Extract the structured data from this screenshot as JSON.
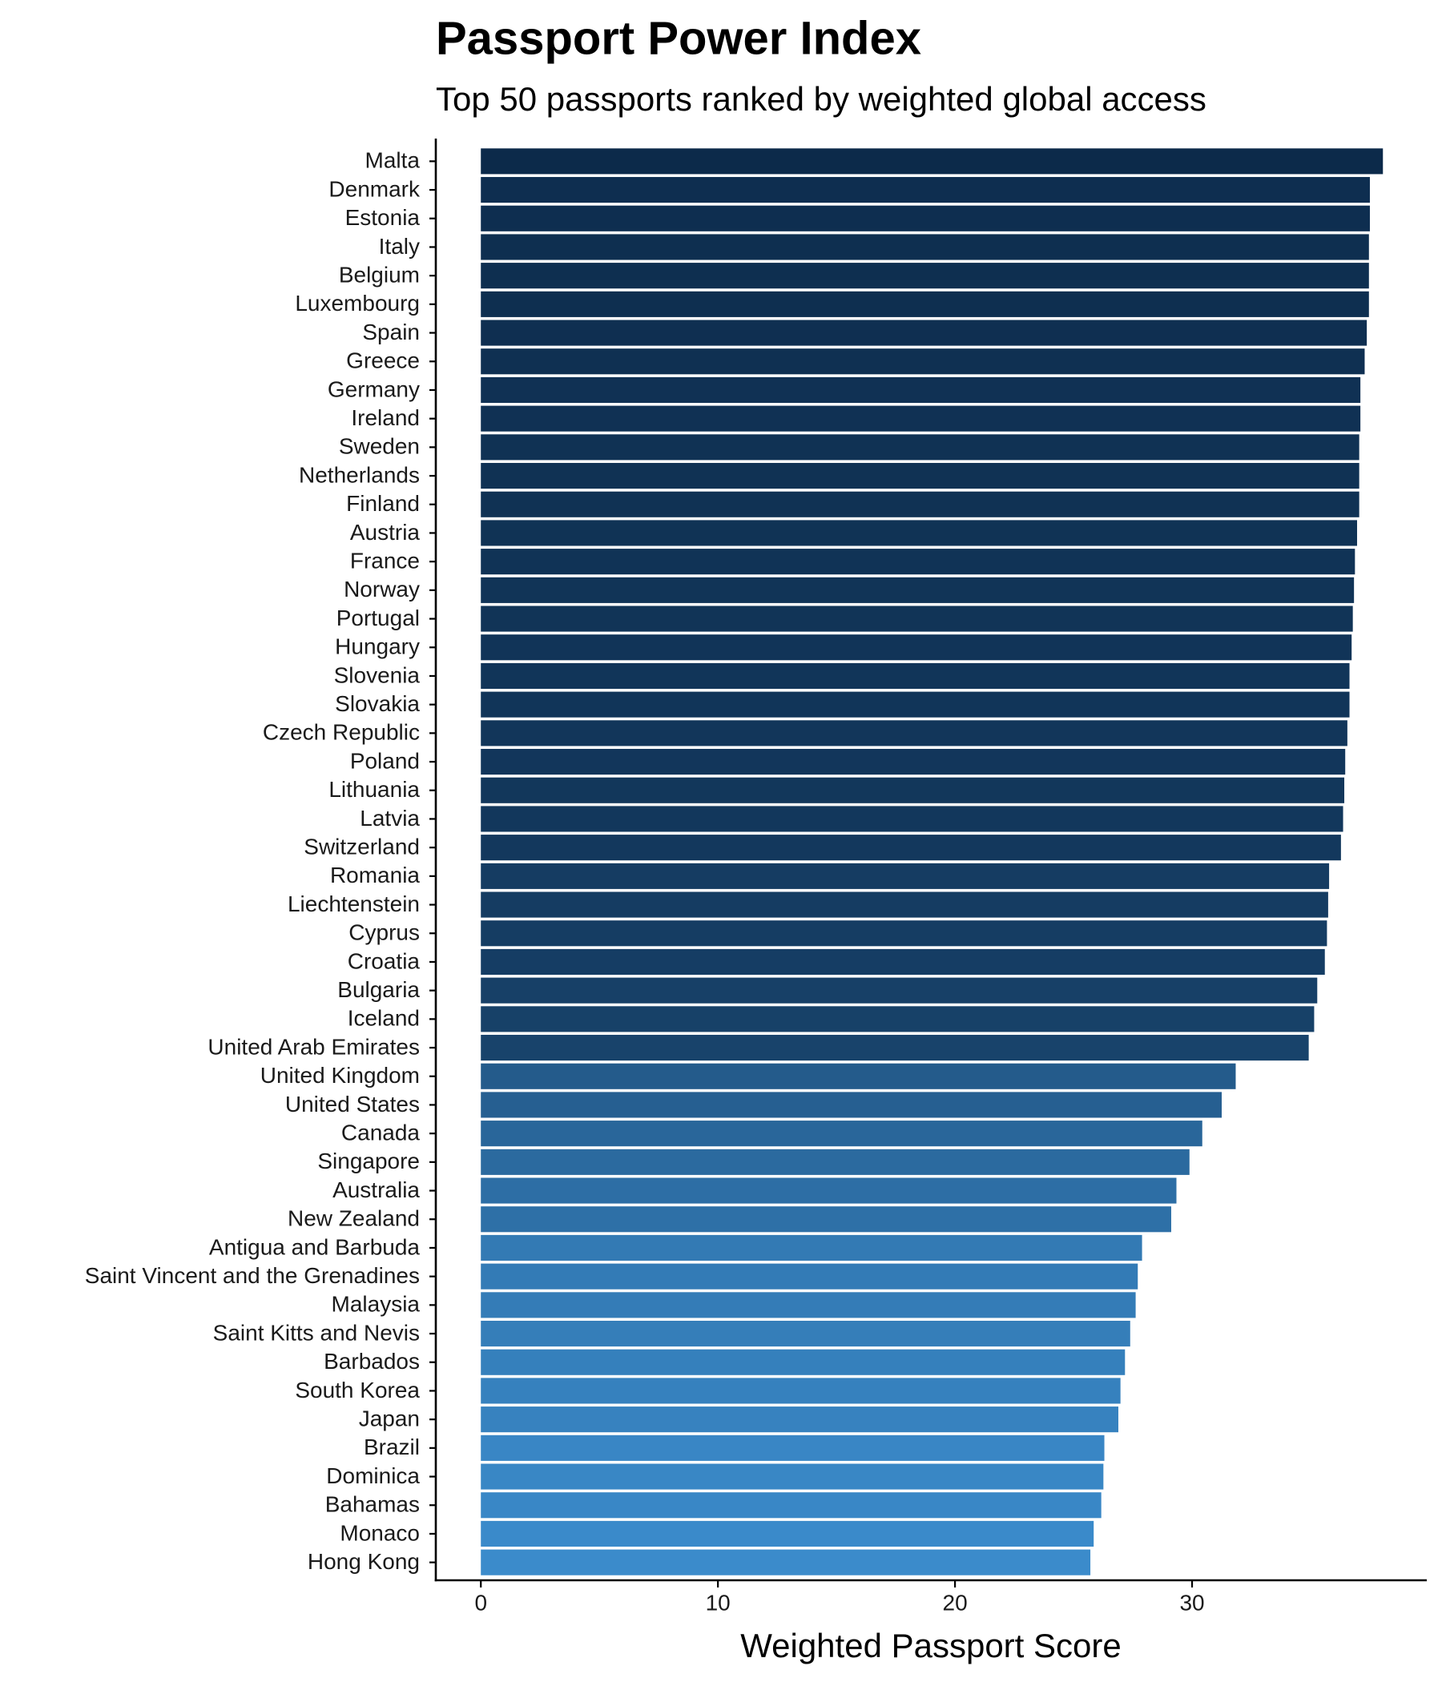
{
  "chart_data": {
    "type": "barh",
    "title": "Passport Power Index",
    "subtitle": "Top 50 passports ranked by weighted global access",
    "x_label": "Weighted Passport Score",
    "categories": [
      "Malta",
      "Denmark",
      "Estonia",
      "Italy",
      "Belgium",
      "Luxembourg",
      "Spain",
      "Greece",
      "Germany",
      "Ireland",
      "Sweden",
      "Netherlands",
      "Finland",
      "Austria",
      "France",
      "Norway",
      "Portugal",
      "Hungary",
      "Slovenia",
      "Slovakia",
      "Czech Republic",
      "Poland",
      "Lithuania",
      "Latvia",
      "Switzerland",
      "Romania",
      "Liechtenstein",
      "Cyprus",
      "Croatia",
      "Bulgaria",
      "Iceland",
      "United Arab Emirates",
      "United Kingdom",
      "United States",
      "Canada",
      "Singapore",
      "Australia",
      "New Zealand",
      "Antigua and Barbuda",
      "Saint Vincent and the Grenadines",
      "Malaysia",
      "Saint Kitts and Nevis",
      "Barbados",
      "South Korea",
      "Japan",
      "Brazil",
      "Dominica",
      "Bahamas",
      "Monaco",
      "Hong Kong"
    ],
    "values": [
      38.05,
      37.5,
      37.5,
      37.46,
      37.46,
      37.46,
      37.37,
      37.28,
      37.1,
      37.1,
      37.05,
      37.05,
      37.05,
      36.96,
      36.87,
      36.83,
      36.78,
      36.73,
      36.64,
      36.64,
      36.55,
      36.46,
      36.42,
      36.37,
      36.28,
      35.78,
      35.74,
      35.69,
      35.6,
      35.28,
      35.15,
      34.92,
      31.84,
      31.25,
      30.43,
      29.89,
      29.34,
      29.12,
      27.89,
      27.71,
      27.62,
      27.39,
      27.17,
      26.98,
      26.89,
      26.3,
      26.26,
      26.17,
      25.85,
      25.71
    ],
    "color_scale": [
      "#3b8bcb",
      "#0c2a4a"
    ],
    "xlim": [
      -1.9,
      39.9
    ],
    "xticks": [
      0,
      10,
      20,
      30
    ],
    "grid": false
  }
}
